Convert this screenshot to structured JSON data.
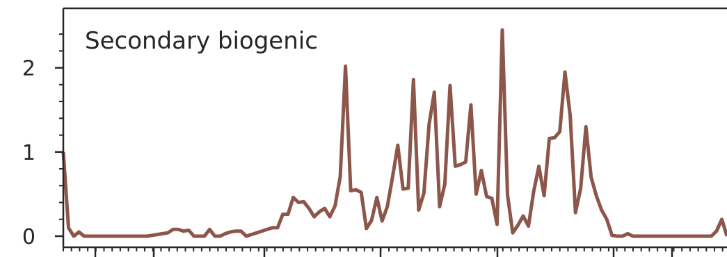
{
  "chart_data": {
    "type": "line",
    "title": "",
    "xlabel": "",
    "ylabel": "",
    "annotation": "Secondary biogenic",
    "ylim": [
      0,
      2.5
    ],
    "xlim": [
      0,
      127
    ],
    "y_ticks": [
      0,
      1,
      2
    ],
    "y_tick_labels": [
      "0",
      "1",
      "2"
    ],
    "grid": false,
    "line_color": "#8c564b",
    "series": [
      {
        "x": [
          0,
          1,
          2,
          3,
          4,
          5,
          6,
          7,
          8,
          9,
          10,
          11,
          12,
          13,
          14,
          15,
          16,
          17,
          18,
          19,
          20,
          21,
          22,
          23,
          24,
          25,
          26,
          27,
          28,
          29,
          30,
          31,
          32,
          33,
          34,
          35,
          36,
          37,
          38,
          39,
          40,
          41,
          42,
          43,
          44,
          45,
          46,
          47,
          48,
          49,
          50,
          51,
          52,
          53,
          54,
          55,
          56,
          57,
          58,
          59,
          60,
          61,
          62,
          63,
          64,
          65,
          66,
          67,
          68,
          69,
          70,
          71,
          72,
          73,
          74,
          75,
          76,
          77,
          78,
          79,
          80,
          81,
          82,
          83,
          84,
          85,
          86,
          87,
          88,
          89,
          90,
          91,
          92,
          93,
          94,
          95,
          96,
          97,
          98,
          99,
          100,
          101,
          102,
          103,
          104,
          105,
          106,
          107,
          108,
          109,
          110,
          111,
          112,
          113,
          114,
          115,
          116,
          117,
          118,
          119,
          120,
          121,
          122,
          123,
          124,
          125,
          126,
          127
        ],
        "values": [
          1.0,
          0.1,
          0.0,
          0.05,
          0.0,
          0.0,
          0.0,
          0.0,
          0.0,
          0.0,
          0.0,
          0.0,
          0.0,
          0.0,
          0.0,
          0.0,
          0.0,
          0.01,
          0.02,
          0.03,
          0.04,
          0.08,
          0.08,
          0.06,
          0.07,
          0.0,
          0.0,
          0.0,
          0.08,
          0.0,
          0.0,
          0.03,
          0.05,
          0.06,
          0.06,
          0.0,
          0.02,
          0.04,
          0.06,
          0.08,
          0.1,
          0.1,
          0.26,
          0.26,
          0.46,
          0.4,
          0.41,
          0.33,
          0.23,
          0.29,
          0.33,
          0.23,
          0.36,
          0.71,
          2.02,
          0.54,
          0.55,
          0.52,
          0.09,
          0.19,
          0.46,
          0.18,
          0.35,
          0.7,
          1.08,
          0.56,
          0.57,
          1.86,
          0.31,
          0.51,
          1.33,
          1.71,
          0.35,
          0.62,
          1.79,
          0.83,
          0.85,
          0.88,
          1.56,
          0.5,
          0.78,
          0.47,
          0.45,
          0.14,
          2.45,
          0.49,
          0.04,
          0.13,
          0.24,
          0.12,
          0.53,
          0.83,
          0.48,
          1.16,
          1.17,
          1.24,
          1.95,
          1.43,
          0.28,
          0.57,
          1.3,
          0.7,
          0.48,
          0.31,
          0.2,
          0.01,
          0.0,
          0.0,
          0.03,
          0.0,
          0.0,
          0.0,
          0.0,
          0.0,
          0.0,
          0.0,
          0.0,
          0.0,
          0.0,
          0.0,
          0.0,
          0.0,
          0.0,
          0.0,
          0.0,
          0.06,
          0.2,
          0.0
        ]
      }
    ]
  }
}
